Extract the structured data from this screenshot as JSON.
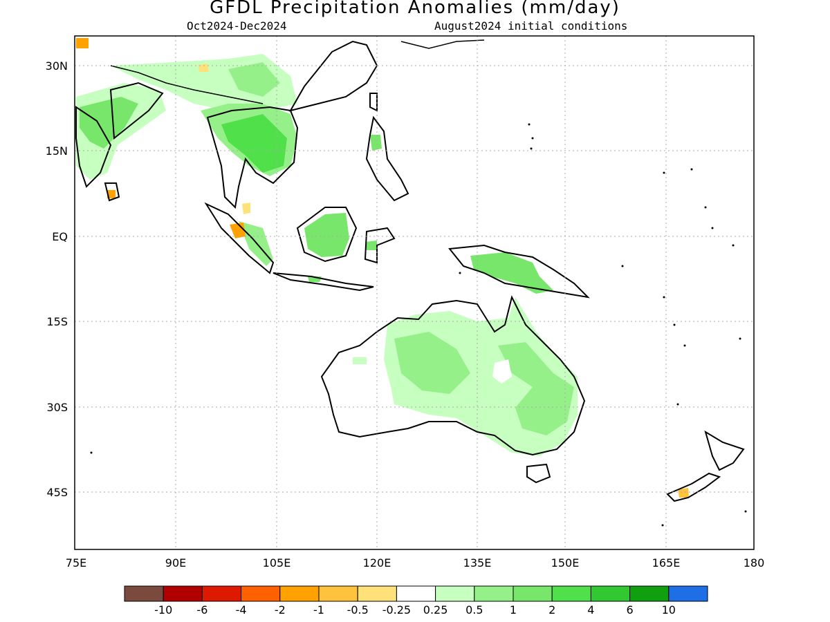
{
  "header": {
    "title": "GFDL Precipitation Anomalies (mm/day)",
    "period": "Oct2024-Dec2024",
    "init": "August2024 initial conditions"
  },
  "axes": {
    "lat_labels": [
      "30N",
      "15N",
      "EQ",
      "15S",
      "30S",
      "45S"
    ],
    "lon_labels": [
      "75E",
      "90E",
      "105E",
      "120E",
      "135E",
      "150E",
      "165E",
      "180"
    ]
  },
  "legend": {
    "colors": [
      "#7a4a3e",
      "#b20000",
      "#dd1a00",
      "#ff6000",
      "#ffa200",
      "#ffc23c",
      "#ffe17a",
      "#ffffff",
      "#c6ffc0",
      "#96f08a",
      "#78e66a",
      "#4fe04a",
      "#32c832",
      "#0f9f0f",
      "#1e6ee6"
    ],
    "labels": [
      "-10",
      "-6",
      "-4",
      "-2",
      "-1",
      "-0.5",
      "-0.25",
      "0.25",
      "0.5",
      "1",
      "2",
      "4",
      "6",
      "10"
    ]
  },
  "colors": {
    "light_green": "#c6ffc0",
    "green": "#96f08a",
    "mid_green": "#78e66a",
    "bright_green": "#4fe04a",
    "yellow": "#ffe17a",
    "orange": "#ffa200"
  }
}
